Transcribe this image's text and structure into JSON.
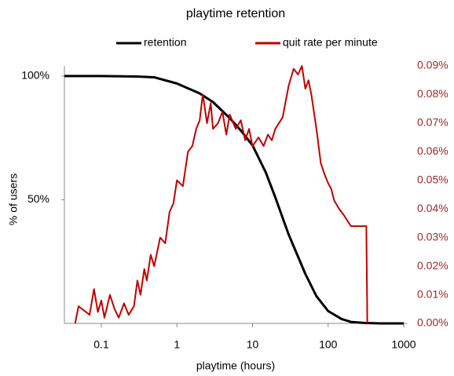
{
  "chart_data": {
    "type": "line",
    "title": "playtime retention",
    "x_label": "playtime (hours)",
    "y_label": "% of users",
    "xscale": "log",
    "xlim": [
      0.0325,
      1000
    ],
    "xticks": [
      0.1,
      1,
      10,
      100,
      1000
    ],
    "ylim": [
      0,
      104.1
    ],
    "yticks": [
      {
        "value": 50,
        "label": "50%"
      },
      {
        "value": 100,
        "label": "100%"
      }
    ],
    "y2lim": [
      0,
      0.09
    ],
    "y2ticks": [
      {
        "value": 0,
        "label": "0.00%"
      },
      {
        "value": 0.01,
        "label": "0.01%"
      },
      {
        "value": 0.02,
        "label": "0.02%"
      },
      {
        "value": 0.03,
        "label": "0.03%"
      },
      {
        "value": 0.04,
        "label": "0.04%"
      },
      {
        "value": 0.05,
        "label": "0.05%"
      },
      {
        "value": 0.06,
        "label": "0.06%"
      },
      {
        "value": 0.07,
        "label": "0.07%"
      },
      {
        "value": 0.08,
        "label": "0.08%"
      },
      {
        "value": 0.09,
        "label": "0.09%"
      }
    ],
    "y2_color": "#a0282d",
    "legend": "top",
    "series": [
      {
        "name": "retention",
        "color": "#000000",
        "x": [
          0.0325,
          0.1,
          0.3,
          0.5,
          1,
          2,
          3,
          5,
          7,
          10,
          15,
          20,
          30,
          50,
          70,
          100,
          150,
          200,
          300,
          500,
          1000
        ],
        "values": [
          100,
          100,
          99.8,
          99.5,
          97,
          93,
          89.5,
          83,
          78,
          72,
          61,
          51,
          36,
          20,
          11,
          5,
          1.8,
          0.6,
          0.2,
          0,
          0
        ]
      },
      {
        "name": "quit rate per minute",
        "color": "#c00000",
        "axis": "y2",
        "x": [
          0.045,
          0.05,
          0.07,
          0.08,
          0.09,
          0.1,
          0.11,
          0.13,
          0.15,
          0.17,
          0.2,
          0.23,
          0.27,
          0.3,
          0.33,
          0.37,
          0.4,
          0.45,
          0.5,
          0.6,
          0.7,
          0.8,
          0.9,
          1.0,
          1.2,
          1.4,
          1.6,
          1.8,
          2.0,
          2.2,
          2.5,
          2.8,
          3.0,
          3.5,
          4.0,
          4.5,
          5.0,
          6,
          7,
          8,
          9,
          10,
          12,
          14,
          16,
          18,
          20,
          25,
          30,
          35,
          40,
          45,
          50,
          55,
          60,
          70,
          80,
          90,
          100,
          110,
          120,
          140,
          160,
          200,
          250,
          320,
          330
        ],
        "values": [
          0,
          0.006,
          0.003,
          0.012,
          0.004,
          0.008,
          0.002,
          0.01,
          0.005,
          0.002,
          0.007,
          0.003,
          0.006,
          0.015,
          0.01,
          0.019,
          0.015,
          0.024,
          0.02,
          0.03,
          0.028,
          0.039,
          0.042,
          0.05,
          0.048,
          0.06,
          0.062,
          0.068,
          0.071,
          0.08,
          0.07,
          0.077,
          0.068,
          0.07,
          0.074,
          0.066,
          0.073,
          0.068,
          0.071,
          0.064,
          0.068,
          0.062,
          0.065,
          0.062,
          0.066,
          0.064,
          0.068,
          0.072,
          0.083,
          0.089,
          0.087,
          0.09,
          0.082,
          0.085,
          0.08,
          0.068,
          0.056,
          0.052,
          0.049,
          0.047,
          0.043,
          0.04,
          0.038,
          0.034,
          0.034,
          0.034,
          0
        ]
      }
    ]
  }
}
